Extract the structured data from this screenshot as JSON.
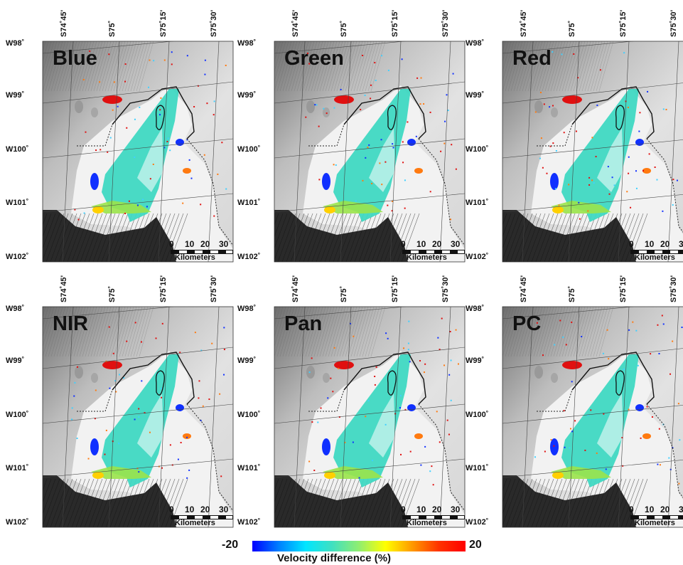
{
  "panels": [
    {
      "name": "Blue"
    },
    {
      "name": "Green"
    },
    {
      "name": "Red"
    },
    {
      "name": "NIR"
    },
    {
      "name": "Pan"
    },
    {
      "name": "PC"
    }
  ],
  "lat_labels": [
    "W98˚",
    "W99˚",
    "W100˚",
    "W101˚",
    "W102˚"
  ],
  "lon_labels": [
    "S74˚45'",
    "S75˚",
    "S75˚15'",
    "S75˚30'"
  ],
  "scale_bar": {
    "ticks": [
      "0",
      "10",
      "20",
      "30"
    ],
    "unit": "Kilometers"
  },
  "colorbar": {
    "min_label": "-20",
    "max_label": "20",
    "title": "Velocity difference (%)",
    "colors": [
      "#0000ff",
      "#00e5ff",
      "#40e0c0",
      "#ffff00",
      "#ff0000"
    ]
  }
}
